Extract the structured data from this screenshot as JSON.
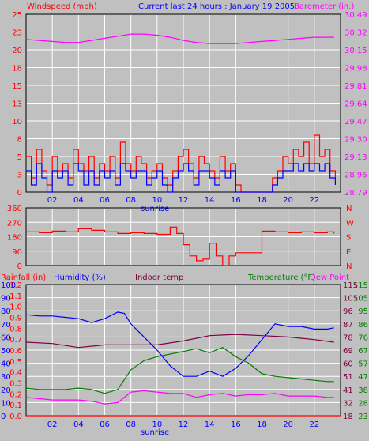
{
  "header": {
    "left_label": "Windspeed (mph)",
    "title": "Current last 24 hours : January 19 2005",
    "right_label": "Barometer (in.)"
  },
  "colors": {
    "background": "#c0c0c0",
    "grid": "#ffffff",
    "wind": "#ff0000",
    "gust": "#0000ff",
    "barometer": "#ff00ff",
    "direction": "#ff0000",
    "rain": "#ff0000",
    "humidity": "#0000ff",
    "indoor": "#800040",
    "temperature": "#008000",
    "dewpoint": "#ff00ff"
  },
  "footer": {
    "sunrise_label": "sunrise"
  },
  "bottom_header": {
    "rain_label": "Rainfall (in)",
    "humidity_label": "Humidity (%)",
    "indoor_label": "Indoor temp",
    "temp_label": "Temperature (°F)",
    "dew_label": "Dew Point"
  },
  "chart_data": [
    {
      "type": "line",
      "panel": "wind",
      "xticks": [
        "02",
        "04",
        "06",
        "08",
        "10",
        "12",
        "14",
        "16",
        "18",
        "20",
        "22"
      ],
      "xlim": [
        0,
        24
      ],
      "y_left_ticks": [
        "0",
        "3",
        "5",
        "8",
        "10",
        "13",
        "15",
        "18",
        "20",
        "23",
        "25"
      ],
      "y_left_lim": [
        0,
        25
      ],
      "y_right_ticks": [
        "28.79",
        "28.96",
        "29.13",
        "29.30",
        "29.47",
        "29.64",
        "29.81",
        "29.98",
        "30.15",
        "30.32",
        "30.49"
      ],
      "y_right_lim": [
        28.79,
        30.49
      ],
      "series": [
        {
          "key": "barometer",
          "axis": "right",
          "x": [
            0,
            1,
            2,
            3,
            4,
            5,
            6,
            7,
            8,
            9,
            10,
            11,
            12,
            13,
            14,
            15,
            16,
            17,
            18,
            19,
            20,
            21,
            22,
            23.5
          ],
          "values": [
            30.25,
            30.24,
            30.23,
            30.22,
            30.22,
            30.24,
            30.26,
            30.28,
            30.3,
            30.3,
            30.29,
            30.27,
            30.24,
            30.22,
            30.21,
            30.21,
            30.21,
            30.22,
            30.23,
            30.24,
            30.25,
            30.26,
            30.27,
            30.27
          ]
        },
        {
          "key": "wind",
          "axis": "left",
          "x": [
            0,
            0.4,
            0.8,
            1.2,
            1.6,
            2,
            2.4,
            2.8,
            3.2,
            3.6,
            4,
            4.4,
            4.8,
            5.2,
            5.6,
            6,
            6.4,
            6.8,
            7.2,
            7.6,
            8,
            8.4,
            8.8,
            9.2,
            9.6,
            10,
            10.4,
            10.8,
            11.2,
            11.6,
            12,
            12.4,
            12.8,
            13.2,
            13.6,
            14,
            14.4,
            14.8,
            15.2,
            15.6,
            16,
            16.4,
            16.8,
            17.2,
            17.6,
            18,
            18.4,
            18.8,
            19.2,
            19.6,
            20,
            20.4,
            20.8,
            21.2,
            21.6,
            22,
            22.4,
            22.8,
            23.2,
            23.6
          ],
          "values": [
            5,
            2,
            6,
            3,
            1,
            5,
            3,
            4,
            2,
            6,
            4,
            3,
            5,
            2,
            4,
            3,
            5,
            2,
            7,
            4,
            3,
            5,
            4,
            2,
            3,
            4,
            2,
            1,
            3,
            5,
            6,
            4,
            2,
            5,
            4,
            3,
            2,
            5,
            3,
            4,
            1,
            0,
            0,
            0,
            0,
            0,
            0,
            2,
            3,
            5,
            4,
            6,
            5,
            7,
            4,
            8,
            5,
            6,
            3,
            2
          ]
        },
        {
          "key": "gust",
          "axis": "left",
          "x": [
            0,
            0.4,
            0.8,
            1.2,
            1.6,
            2,
            2.4,
            2.8,
            3.2,
            3.6,
            4,
            4.4,
            4.8,
            5.2,
            5.6,
            6,
            6.4,
            6.8,
            7.2,
            7.6,
            8,
            8.4,
            8.8,
            9.2,
            9.6,
            10,
            10.4,
            10.8,
            11.2,
            11.6,
            12,
            12.4,
            12.8,
            13.2,
            13.6,
            14,
            14.4,
            14.8,
            15.2,
            15.6,
            16,
            16.4,
            16.8,
            17.2,
            17.6,
            18,
            18.4,
            18.8,
            19.2,
            19.6,
            20,
            20.4,
            20.8,
            21.2,
            21.6,
            22,
            22.4,
            22.8,
            23.2,
            23.6
          ],
          "values": [
            3,
            1,
            4,
            2,
            0,
            3,
            2,
            3,
            1,
            4,
            3,
            1,
            3,
            1,
            3,
            2,
            3,
            1,
            4,
            3,
            2,
            3,
            3,
            1,
            2,
            3,
            1,
            0,
            2,
            3,
            4,
            3,
            1,
            3,
            3,
            2,
            1,
            3,
            2,
            3,
            0,
            0,
            0,
            0,
            0,
            0,
            0,
            1,
            2,
            3,
            3,
            4,
            3,
            4,
            3,
            4,
            3,
            4,
            2,
            1
          ]
        }
      ]
    },
    {
      "type": "line",
      "panel": "direction",
      "xlim": [
        0,
        24
      ],
      "y_left_ticks": [
        "0",
        "90",
        "180",
        "270",
        "360"
      ],
      "y_left_lim": [
        0,
        360
      ],
      "y_right_ticks": [
        "N",
        "E",
        "S",
        "W",
        "N"
      ],
      "series": [
        {
          "key": "direction",
          "x": [
            0,
            1,
            2,
            3,
            4,
            5,
            6,
            7,
            8,
            9,
            10,
            11,
            11.5,
            12,
            12.5,
            13,
            13.5,
            14,
            14.5,
            15,
            15.5,
            16,
            17,
            18,
            19,
            20,
            21,
            22,
            23,
            23.5
          ],
          "values": [
            210,
            205,
            215,
            210,
            230,
            220,
            210,
            200,
            205,
            200,
            195,
            240,
            200,
            130,
            60,
            30,
            40,
            140,
            60,
            0,
            60,
            80,
            80,
            215,
            210,
            205,
            210,
            205,
            210,
            200
          ]
        }
      ]
    },
    {
      "type": "line",
      "panel": "weather",
      "xticks": [
        "02",
        "04",
        "06",
        "08",
        "10",
        "12",
        "14",
        "16",
        "18",
        "20",
        "22"
      ],
      "xlim": [
        0,
        24
      ],
      "y_left_ticks": [
        "0.0",
        "0.1",
        "0.2",
        "0.3",
        "0.4",
        "0.5",
        "0.6",
        "0.7",
        "0.8",
        "0.9",
        "1.0",
        "1.1",
        "1.2"
      ],
      "y_humidity_ticks": [
        "0",
        "10",
        "20",
        "30",
        "40",
        "50",
        "60",
        "70",
        "80",
        "90",
        "100"
      ],
      "y_left_lim": [
        0,
        100
      ],
      "y_indoor_ticks": [
        "18",
        "32",
        "41",
        "51",
        "60",
        "69",
        "78",
        "87",
        "96",
        "105",
        "115"
      ],
      "y_right_ticks": [
        "23",
        "28",
        "38",
        "47",
        "57",
        "67",
        "76",
        "86",
        "95",
        "105",
        "115"
      ],
      "series": [
        {
          "key": "humidity",
          "x": [
            0,
            1,
            2,
            3,
            4,
            5,
            6,
            7,
            7.5,
            8,
            9,
            10,
            11,
            12,
            13,
            14,
            15,
            16,
            17,
            18,
            19,
            20,
            21,
            22,
            23,
            23.5
          ],
          "values": [
            77,
            76,
            76,
            75,
            74,
            71,
            74,
            79,
            78,
            70,
            60,
            50,
            38,
            30,
            30,
            34,
            30,
            36,
            46,
            58,
            70,
            68,
            68,
            66,
            66,
            67
          ]
        },
        {
          "key": "indoor",
          "x": [
            0,
            2,
            4,
            6,
            8,
            10,
            12,
            14,
            16,
            18,
            20,
            22,
            23.5
          ],
          "values": [
            56,
            55,
            52,
            54,
            54,
            54,
            57,
            61,
            62,
            61,
            60,
            58,
            56
          ]
        },
        {
          "key": "temperature",
          "x": [
            0,
            1,
            2,
            3,
            4,
            5,
            6,
            7,
            8,
            9,
            10,
            11,
            12,
            13,
            14,
            15,
            16,
            17,
            18,
            19,
            20,
            21,
            22,
            23,
            23.5
          ],
          "values": [
            21,
            20,
            20,
            20,
            21,
            20,
            17,
            20,
            35,
            42,
            45,
            47,
            49,
            51,
            48,
            52,
            45,
            40,
            32,
            30,
            29,
            28,
            27,
            26,
            26
          ]
        },
        {
          "key": "dewpoint",
          "x": [
            0,
            1,
            2,
            3,
            4,
            5,
            6,
            7,
            8,
            9,
            10,
            11,
            12,
            13,
            14,
            15,
            16,
            17,
            18,
            19,
            20,
            21,
            22,
            23,
            23.5
          ],
          "values": [
            14,
            13,
            12,
            12,
            12,
            11,
            9,
            10,
            18,
            19,
            18,
            17,
            17,
            14,
            16,
            17,
            15,
            16,
            16,
            17,
            15,
            15,
            15,
            14,
            14
          ]
        },
        {
          "key": "rain",
          "x": [
            0,
            24
          ],
          "values": [
            0,
            0
          ]
        }
      ]
    }
  ]
}
